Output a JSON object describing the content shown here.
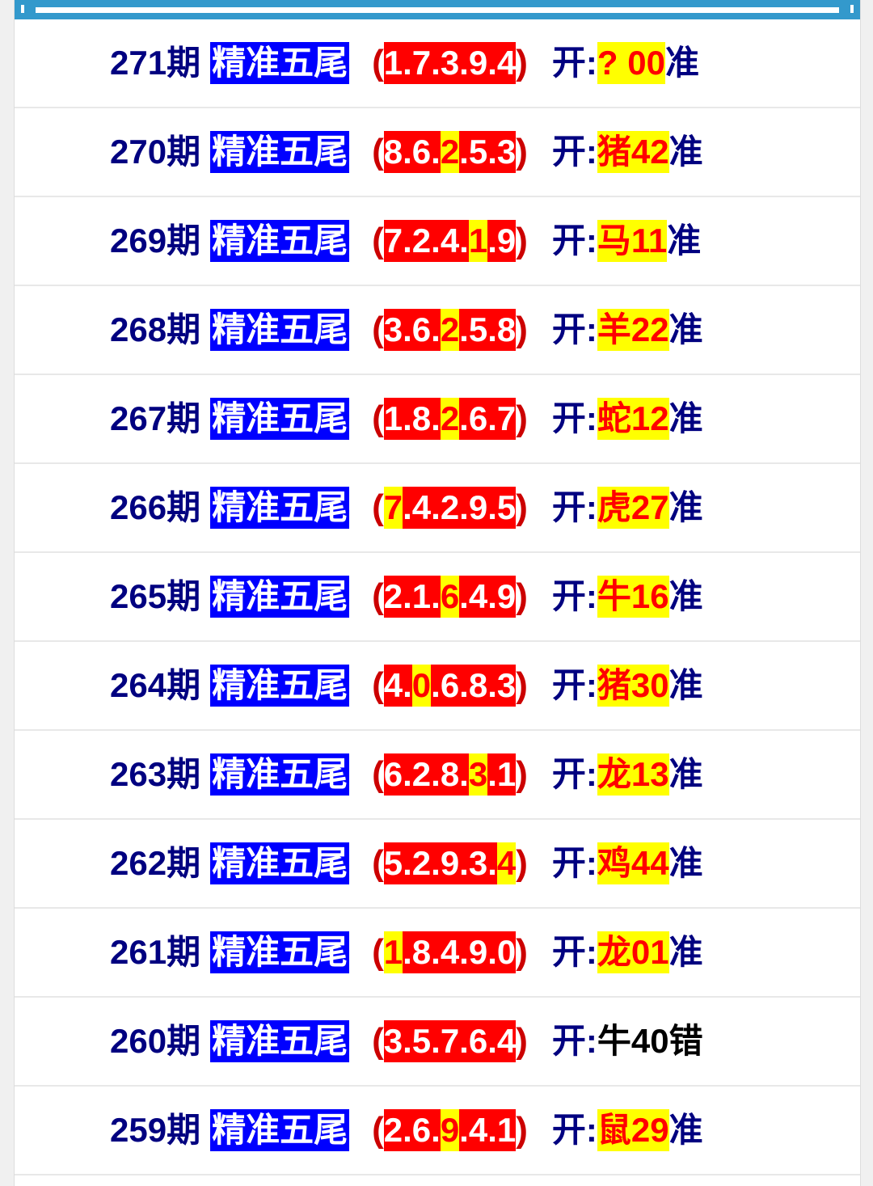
{
  "label": "精准五尾",
  "open_prefix": "开:",
  "colors": {
    "header": "#3399cc",
    "period": "#000080",
    "label_bg": "#0000ff",
    "pick_bg": "#ff0000",
    "hit_bg": "#ffff00",
    "hit_text": "#ff0000"
  },
  "rows": [
    {
      "period": "271期",
      "digits": [
        "1",
        "7",
        "3",
        "9",
        "4"
      ],
      "hit": -1,
      "result": "? 00",
      "verdict": "准",
      "miss": false
    },
    {
      "period": "270期",
      "digits": [
        "8",
        "6",
        "2",
        "5",
        "3"
      ],
      "hit": 2,
      "result": "猪42",
      "verdict": "准",
      "miss": false
    },
    {
      "period": "269期",
      "digits": [
        "7",
        "2",
        "4",
        "1",
        "9"
      ],
      "hit": 3,
      "result": "马11",
      "verdict": "准",
      "miss": false
    },
    {
      "period": "268期",
      "digits": [
        "3",
        "6",
        "2",
        "5",
        "8"
      ],
      "hit": 2,
      "result": "羊22",
      "verdict": "准",
      "miss": false
    },
    {
      "period": "267期",
      "digits": [
        "1",
        "8",
        "2",
        "6",
        "7"
      ],
      "hit": 2,
      "result": "蛇12",
      "verdict": "准",
      "miss": false
    },
    {
      "period": "266期",
      "digits": [
        "7",
        "4",
        "2",
        "9",
        "5"
      ],
      "hit": 0,
      "result": "虎27",
      "verdict": "准",
      "miss": false
    },
    {
      "period": "265期",
      "digits": [
        "2",
        "1",
        "6",
        "4",
        "9"
      ],
      "hit": 2,
      "result": "牛16",
      "verdict": "准",
      "miss": false
    },
    {
      "period": "264期",
      "digits": [
        "4",
        "0",
        "6",
        "8",
        "3"
      ],
      "hit": 1,
      "result": "猪30",
      "verdict": "准",
      "miss": false
    },
    {
      "period": "263期",
      "digits": [
        "6",
        "2",
        "8",
        "3",
        "1"
      ],
      "hit": 3,
      "result": "龙13",
      "verdict": "准",
      "miss": false
    },
    {
      "period": "262期",
      "digits": [
        "5",
        "2",
        "9",
        "3",
        "4"
      ],
      "hit": 4,
      "result": "鸡44",
      "verdict": "准",
      "miss": false
    },
    {
      "period": "261期",
      "digits": [
        "1",
        "8",
        "4",
        "9",
        "0"
      ],
      "hit": 0,
      "result": "龙01",
      "verdict": "准",
      "miss": false
    },
    {
      "period": "260期",
      "digits": [
        "3",
        "5",
        "7",
        "6",
        "4"
      ],
      "hit": -1,
      "result": "牛40",
      "verdict": "错",
      "miss": true
    },
    {
      "period": "259期",
      "digits": [
        "2",
        "6",
        "9",
        "4",
        "1"
      ],
      "hit": 2,
      "result": "鼠29",
      "verdict": "准",
      "miss": false
    }
  ]
}
